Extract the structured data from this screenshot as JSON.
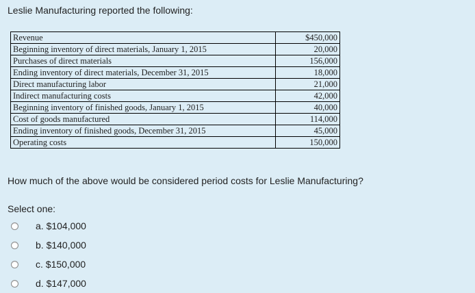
{
  "intro": "Leslie Manufacturing reported the following:",
  "table": {
    "rows": [
      {
        "label": "Revenue",
        "value": "$450,000"
      },
      {
        "label": "Beginning inventory of direct materials, January 1, 2015",
        "value": "20,000"
      },
      {
        "label": "Purchases of direct materials",
        "value": "156,000"
      },
      {
        "label": "Ending inventory of direct materials, December 31, 2015",
        "value": "18,000"
      },
      {
        "label": "Direct manufacturing labor",
        "value": "21,000"
      },
      {
        "label": "Indirect manufacturing costs",
        "value": "42,000"
      },
      {
        "label": "Beginning inventory of finished goods, January 1, 2015",
        "value": "40,000"
      },
      {
        "label": "Cost of goods manufactured",
        "value": "114,000"
      },
      {
        "label": "Ending inventory of finished goods, December 31, 2015",
        "value": "45,000"
      },
      {
        "label": "Operating costs",
        "value": "150,000"
      }
    ]
  },
  "question": "How much of the above would be considered period costs for Leslie Manufacturing?",
  "select_prompt": "Select one:",
  "options": [
    {
      "letter": "a.",
      "text": "$104,000"
    },
    {
      "letter": "b.",
      "text": "$140,000"
    },
    {
      "letter": "c.",
      "text": "$150,000"
    },
    {
      "letter": "d.",
      "text": "$147,000"
    }
  ]
}
